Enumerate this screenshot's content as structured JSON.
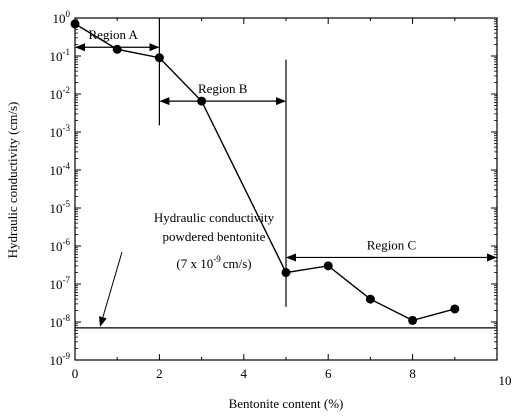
{
  "chart_data": {
    "type": "line",
    "title": "",
    "xlabel": "Bentonite content (%)",
    "ylabel": "Hydraulic conductivity (cm/s)",
    "xlim": [
      0,
      10
    ],
    "ylim": [
      1e-09,
      1
    ],
    "y_scale": "log",
    "grid": false,
    "x_ticks": [
      {
        "value": 0,
        "label": "0"
      },
      {
        "value": 2,
        "label": "2"
      },
      {
        "value": 4,
        "label": "4"
      },
      {
        "value": 6,
        "label": "6"
      },
      {
        "value": 8,
        "label": "8"
      },
      {
        "value": 10,
        "label": "10"
      }
    ],
    "y_ticks": [
      {
        "exp": 0,
        "base": "10",
        "sup": "0"
      },
      {
        "exp": -1,
        "base": "10",
        "sup": "-1"
      },
      {
        "exp": -2,
        "base": "10",
        "sup": "-2"
      },
      {
        "exp": -3,
        "base": "10",
        "sup": "-3"
      },
      {
        "exp": -4,
        "base": "10",
        "sup": "-4"
      },
      {
        "exp": -5,
        "base": "10",
        "sup": "-5"
      },
      {
        "exp": -6,
        "base": "10",
        "sup": "-6"
      },
      {
        "exp": -7,
        "base": "10",
        "sup": "-7"
      },
      {
        "exp": -8,
        "base": "10",
        "sup": "-8"
      },
      {
        "exp": -9,
        "base": "10",
        "sup": "-9"
      }
    ],
    "series": [
      {
        "x": [
          0,
          1,
          2,
          3,
          5,
          6,
          7,
          8,
          9
        ],
        "y": [
          0.7,
          0.15,
          0.09,
          0.0065,
          2e-07,
          3e-07,
          4e-08,
          1.1e-08,
          2.2e-08
        ]
      }
    ],
    "reference_line": {
      "y": 7e-09
    },
    "regions": [
      {
        "label": "Region A",
        "x_start": 0,
        "x_end": 2,
        "y": 0.17
      },
      {
        "label": "Region B",
        "x_start": 2,
        "x_end": 5,
        "y": 0.0065
      },
      {
        "label": "Region C",
        "x_start": 5,
        "x_end": 10,
        "y": 5e-07
      }
    ],
    "region_boundaries": [
      {
        "x": 2,
        "y_top": 1,
        "y_bottom": 0.0015
      },
      {
        "x": 5,
        "y_top": 0.08,
        "y_bottom": 2.5e-08
      }
    ],
    "annotation": {
      "line1": "Hydraulic conductivity",
      "line2": "powdered bentonite",
      "line3_prefix": "(7 x 10",
      "line3_sup": "-9",
      "line3_suffix": "cm/s)",
      "arrow_target": {
        "x": 0.6,
        "y": 7e-09
      }
    }
  }
}
